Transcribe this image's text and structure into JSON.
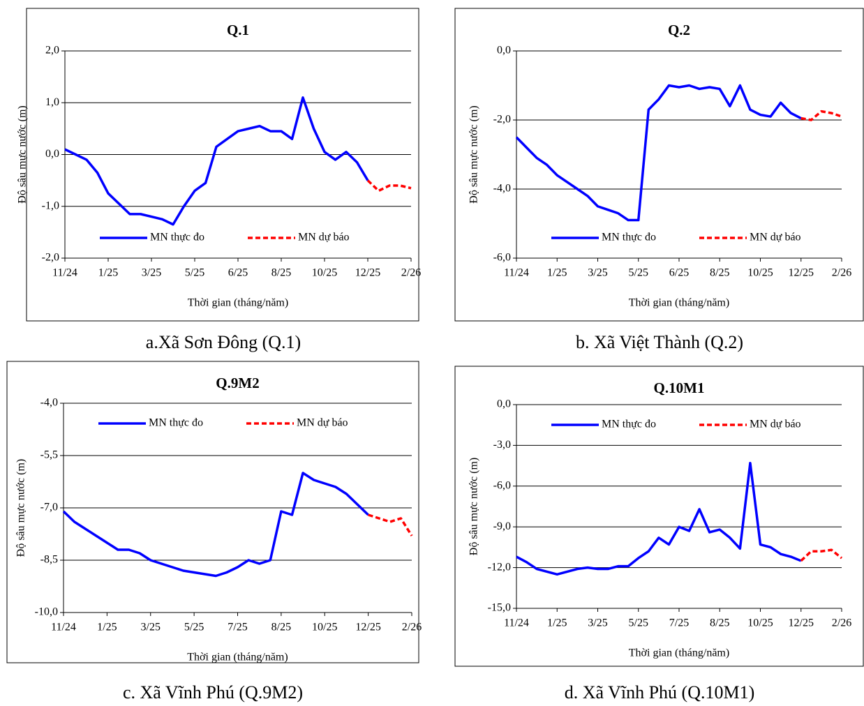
{
  "chart_data": [
    {
      "type": "line",
      "title": "Q.1",
      "caption": "a.Xã Sơn Đông (Q.1)",
      "xlabel": "Thời gian (tháng/năm)",
      "ylabel": "Độ sâu mực nước (m)",
      "x": [
        0,
        0.5,
        1,
        1.5,
        2,
        2.5,
        3,
        3.5,
        4,
        4.5,
        5,
        5.5,
        6,
        6.5,
        7,
        7.5,
        8,
        8.5,
        9,
        9.5,
        10,
        10.5,
        11,
        11.5,
        12,
        12.5,
        13,
        13.5,
        14,
        14.5,
        15,
        15.5,
        16
      ],
      "xlim": [
        0,
        16
      ],
      "xticks": [
        {
          "value": 0,
          "label": "11/24"
        },
        {
          "value": 2,
          "label": "1/25"
        },
        {
          "value": 4,
          "label": "3/25"
        },
        {
          "value": 6,
          "label": "5/25"
        },
        {
          "value": 8,
          "label": "6/25"
        },
        {
          "value": 10,
          "label": "8/25"
        },
        {
          "value": 12,
          "label": "10/25"
        },
        {
          "value": 14,
          "label": "12/25"
        },
        {
          "value": 16,
          "label": "2/26"
        }
      ],
      "ylim": [
        -2,
        2
      ],
      "yticks": [
        {
          "value": -2,
          "label": "-2,0"
        },
        {
          "value": -1,
          "label": "-1,0"
        },
        {
          "value": 0,
          "label": "0,0"
        },
        {
          "value": 1,
          "label": "1,0"
        },
        {
          "value": 2,
          "label": "2,0"
        }
      ],
      "grid": true,
      "legend": "lower center",
      "series": [
        {
          "name": "MN thực đo",
          "color": "#0000ff",
          "dashed": false,
          "values": [
            0.1,
            0.0,
            -0.1,
            -0.35,
            -0.75,
            -0.95,
            -1.15,
            -1.15,
            -1.2,
            -1.25,
            -1.35,
            -1.0,
            -0.7,
            -0.55,
            0.15,
            0.3,
            0.45,
            0.5,
            0.55,
            0.45,
            0.45,
            0.3,
            1.1,
            0.5,
            0.05,
            -0.1,
            0.05,
            -0.15,
            -0.5,
            null,
            null,
            null,
            null
          ]
        },
        {
          "name": "MN dự báo",
          "color": "#ff0000",
          "dashed": true,
          "values": [
            null,
            null,
            null,
            null,
            null,
            null,
            null,
            null,
            null,
            null,
            null,
            null,
            null,
            null,
            null,
            null,
            null,
            null,
            null,
            null,
            null,
            null,
            null,
            null,
            null,
            null,
            null,
            null,
            -0.5,
            -0.7,
            -0.6,
            -0.6,
            -0.65
          ]
        }
      ]
    },
    {
      "type": "line",
      "title": "Q.2",
      "caption": "b. Xã Việt Thành (Q.2)",
      "xlabel": "Thời gian (tháng/năm)",
      "ylabel": "Độ sâu mực nước (m)",
      "x": [
        0,
        0.5,
        1,
        1.5,
        2,
        2.5,
        3,
        3.5,
        4,
        4.5,
        5,
        5.5,
        6,
        6.5,
        7,
        7.5,
        8,
        8.5,
        9,
        9.5,
        10,
        10.5,
        11,
        11.5,
        12,
        12.5,
        13,
        13.5,
        14,
        14.5,
        15,
        15.5,
        16
      ],
      "xlim": [
        0,
        16
      ],
      "xticks": [
        {
          "value": 0,
          "label": "11/24"
        },
        {
          "value": 2,
          "label": "1/25"
        },
        {
          "value": 4,
          "label": "3/25"
        },
        {
          "value": 6,
          "label": "5/25"
        },
        {
          "value": 8,
          "label": "6/25"
        },
        {
          "value": 10,
          "label": "8/25"
        },
        {
          "value": 12,
          "label": "10/25"
        },
        {
          "value": 14,
          "label": "12/25"
        },
        {
          "value": 16,
          "label": "2/26"
        }
      ],
      "ylim": [
        -6,
        0
      ],
      "yticks": [
        {
          "value": -6,
          "label": "-6,0"
        },
        {
          "value": -4,
          "label": "-4,0"
        },
        {
          "value": -2,
          "label": "-2,0"
        },
        {
          "value": 0,
          "label": "0,0"
        }
      ],
      "grid": true,
      "legend": "lower center",
      "series": [
        {
          "name": "MN thực đo",
          "color": "#0000ff",
          "dashed": false,
          "values": [
            -2.5,
            -2.8,
            -3.1,
            -3.3,
            -3.6,
            -3.8,
            -4.0,
            -4.2,
            -4.5,
            -4.6,
            -4.7,
            -4.9,
            -4.9,
            -1.7,
            -1.4,
            -1.0,
            -1.05,
            -1.0,
            -1.1,
            -1.05,
            -1.1,
            -1.6,
            -1.0,
            -1.7,
            -1.85,
            -1.9,
            -1.5,
            -1.8,
            -1.95,
            null,
            null,
            null,
            null
          ]
        },
        {
          "name": "MN dự báo",
          "color": "#ff0000",
          "dashed": true,
          "values": [
            null,
            null,
            null,
            null,
            null,
            null,
            null,
            null,
            null,
            null,
            null,
            null,
            null,
            null,
            null,
            null,
            null,
            null,
            null,
            null,
            null,
            null,
            null,
            null,
            null,
            null,
            null,
            null,
            -1.95,
            -2.0,
            -1.75,
            -1.8,
            -1.9
          ]
        }
      ]
    },
    {
      "type": "line",
      "title": "Q.9M2",
      "caption": "c. Xã Vĩnh Phú (Q.9M2)",
      "xlabel": "Thời gian (tháng/năm)",
      "ylabel": "Độ sâu mực nước (m)",
      "x": [
        0,
        0.5,
        1,
        1.5,
        2,
        2.5,
        3,
        3.5,
        4,
        4.5,
        5,
        5.5,
        6,
        6.5,
        7,
        7.5,
        8,
        8.5,
        9,
        9.5,
        10,
        10.5,
        11,
        11.5,
        12,
        12.5,
        13,
        13.5,
        14,
        14.5,
        15,
        15.5,
        16
      ],
      "xlim": [
        0,
        16
      ],
      "xticks": [
        {
          "value": 0,
          "label": "11/24"
        },
        {
          "value": 2,
          "label": "1/25"
        },
        {
          "value": 4,
          "label": "3/25"
        },
        {
          "value": 6,
          "label": "5/25"
        },
        {
          "value": 8,
          "label": "7/25"
        },
        {
          "value": 10,
          "label": "8/25"
        },
        {
          "value": 12,
          "label": "10/25"
        },
        {
          "value": 14,
          "label": "12/25"
        },
        {
          "value": 16,
          "label": "2/26"
        }
      ],
      "ylim": [
        -10,
        -4
      ],
      "yticks": [
        {
          "value": -10,
          "label": "-10,0"
        },
        {
          "value": -8.5,
          "label": "-8,5"
        },
        {
          "value": -7,
          "label": "-7,0"
        },
        {
          "value": -5.5,
          "label": "-5,5"
        },
        {
          "value": -4,
          "label": "-4,0"
        }
      ],
      "grid": true,
      "legend": "upper center",
      "series": [
        {
          "name": "MN thực đo",
          "color": "#0000ff",
          "dashed": false,
          "values": [
            -7.1,
            -7.4,
            -7.6,
            -7.8,
            -8.0,
            -8.2,
            -8.2,
            -8.3,
            -8.5,
            -8.6,
            -8.7,
            -8.8,
            -8.85,
            -8.9,
            -8.95,
            -8.85,
            -8.7,
            -8.5,
            -8.6,
            -8.5,
            -7.1,
            -7.2,
            -6.0,
            -6.2,
            -6.3,
            -6.4,
            -6.6,
            -6.9,
            -7.2,
            null,
            null,
            null,
            null
          ]
        },
        {
          "name": "MN dự báo",
          "color": "#ff0000",
          "dashed": true,
          "values": [
            null,
            null,
            null,
            null,
            null,
            null,
            null,
            null,
            null,
            null,
            null,
            null,
            null,
            null,
            null,
            null,
            null,
            null,
            null,
            null,
            null,
            null,
            null,
            null,
            null,
            null,
            null,
            null,
            -7.2,
            -7.3,
            -7.4,
            -7.3,
            -7.8
          ]
        }
      ]
    },
    {
      "type": "line",
      "title": "Q.10M1",
      "caption": "d. Xã Vĩnh Phú (Q.10M1)",
      "xlabel": "Thời gian (tháng/năm)",
      "ylabel": "Độ sâu mực nước (m)",
      "x": [
        0,
        0.5,
        1,
        1.5,
        2,
        2.5,
        3,
        3.5,
        4,
        4.5,
        5,
        5.5,
        6,
        6.5,
        7,
        7.5,
        8,
        8.5,
        9,
        9.5,
        10,
        10.5,
        11,
        11.5,
        12,
        12.5,
        13,
        13.5,
        14,
        14.5,
        15,
        15.5,
        16
      ],
      "xlim": [
        0,
        16
      ],
      "xticks": [
        {
          "value": 0,
          "label": "11/24"
        },
        {
          "value": 2,
          "label": "1/25"
        },
        {
          "value": 4,
          "label": "3/25"
        },
        {
          "value": 6,
          "label": "5/25"
        },
        {
          "value": 8,
          "label": "7/25"
        },
        {
          "value": 10,
          "label": "8/25"
        },
        {
          "value": 12,
          "label": "10/25"
        },
        {
          "value": 14,
          "label": "12/25"
        },
        {
          "value": 16,
          "label": "2/26"
        }
      ],
      "ylim": [
        -15,
        0
      ],
      "yticks": [
        {
          "value": -15,
          "label": "-15,0"
        },
        {
          "value": -12,
          "label": "-12,0"
        },
        {
          "value": -9,
          "label": "-9,0"
        },
        {
          "value": -6,
          "label": "-6,0"
        },
        {
          "value": -3,
          "label": "-3,0"
        },
        {
          "value": 0,
          "label": "0,0"
        }
      ],
      "grid": true,
      "legend": "upper center",
      "series": [
        {
          "name": "MN thực đo",
          "color": "#0000ff",
          "dashed": false,
          "values": [
            -11.2,
            -11.6,
            -12.1,
            -12.3,
            -12.5,
            -12.3,
            -12.1,
            -12.0,
            -12.1,
            -12.1,
            -11.9,
            -11.9,
            -11.3,
            -10.8,
            -9.8,
            -10.3,
            -9.0,
            -9.3,
            -7.7,
            -9.4,
            -9.2,
            -9.8,
            -10.6,
            -4.3,
            -10.3,
            -10.5,
            -11.0,
            -11.2,
            -11.5,
            null,
            null,
            null,
            null
          ]
        },
        {
          "name": "MN dự báo",
          "color": "#ff0000",
          "dashed": true,
          "values": [
            null,
            null,
            null,
            null,
            null,
            null,
            null,
            null,
            null,
            null,
            null,
            null,
            null,
            null,
            null,
            null,
            null,
            null,
            null,
            null,
            null,
            null,
            null,
            null,
            null,
            null,
            null,
            null,
            -11.5,
            -10.8,
            -10.8,
            -10.7,
            -11.3
          ]
        }
      ]
    }
  ]
}
